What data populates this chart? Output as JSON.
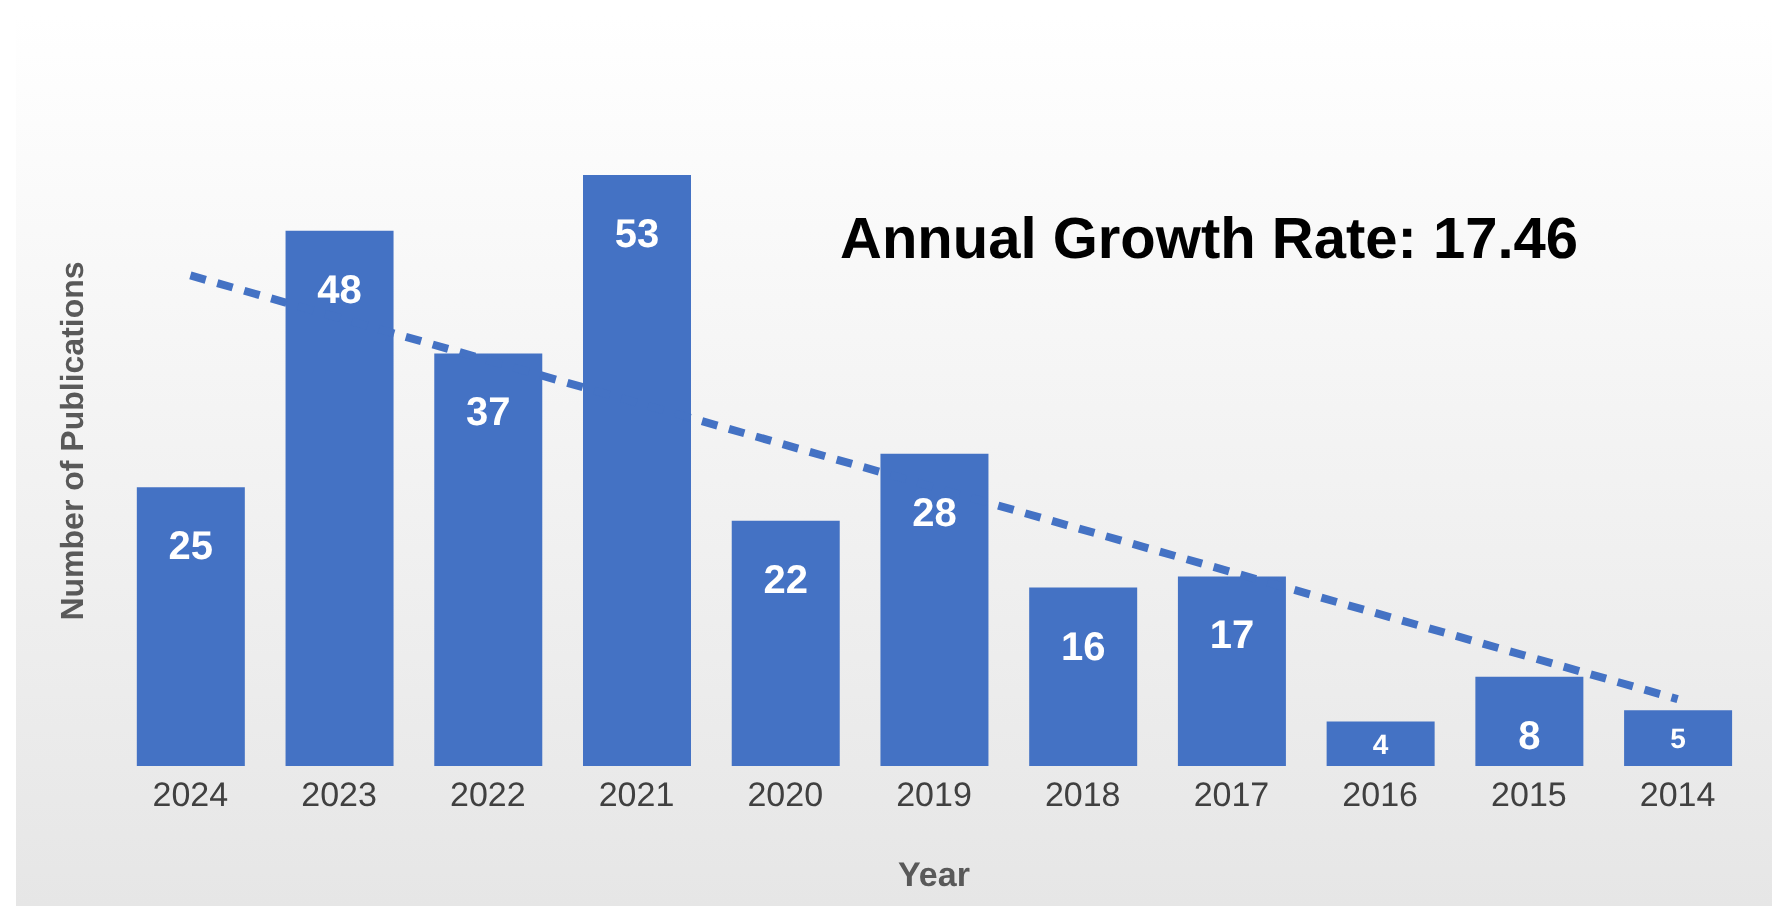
{
  "chart_data": {
    "type": "bar",
    "xlabel": "Year",
    "ylabel": "Number of Publications",
    "annotations": [
      "Annual Growth Rate: 17.46"
    ],
    "categories": [
      "2024",
      "2023",
      "2022",
      "2021",
      "2020",
      "2019",
      "2018",
      "2017",
      "2016",
      "2015",
      "2014"
    ],
    "series": [
      {
        "color": "#4472c4",
        "values": [
          25,
          48,
          37,
          53,
          22,
          28,
          16,
          17,
          4,
          8,
          5
        ]
      },
      {
        "type": "line",
        "color": "#4472c4",
        "line_style": "dashed",
        "values": [
          44,
          null,
          null,
          null,
          null,
          null,
          null,
          null,
          null,
          null,
          6
        ],
        "value_labels": [
          null,
          null,
          null,
          null,
          null,
          null,
          null,
          null,
          null,
          null,
          null
        ]
      }
    ],
    "data_labels": true
  }
}
